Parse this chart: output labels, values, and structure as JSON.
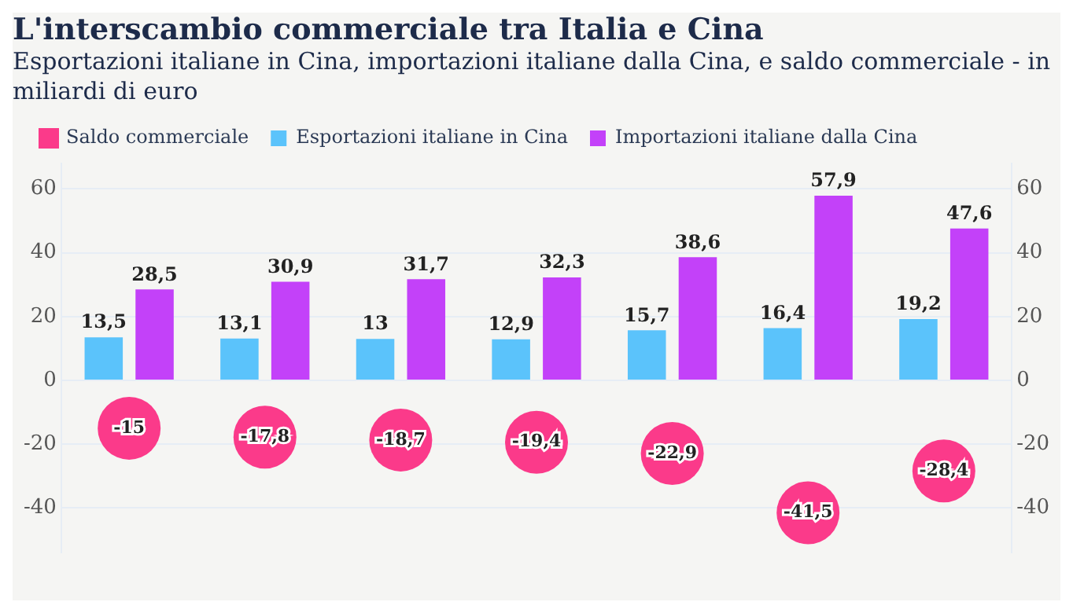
{
  "chart_data": {
    "type": "bar",
    "title": "L'interscambio commerciale tra Italia e Cina",
    "subtitle": "Esportazioni italiane in Cina, importazioni italiane dalla Cina, e saldo commerciale - in miliardi di euro",
    "categories": [
      null,
      null,
      null,
      null,
      null,
      null,
      null
    ],
    "series": [
      {
        "name": "Saldo commerciale",
        "type": "scatter",
        "marker": "circle",
        "color": "#fb3a8a",
        "values": [
          -15,
          -17.8,
          -18.7,
          -19.4,
          -22.9,
          -41.5,
          -28.4
        ],
        "value_labels": [
          "-15",
          "-17,8",
          "-18,7",
          "-19,4",
          "-22,9",
          "-41,5",
          "-28,4"
        ]
      },
      {
        "name": "Esportazioni italiane in Cina",
        "color": "#5bc3fb",
        "values": [
          13.5,
          13.1,
          13,
          12.9,
          15.7,
          16.4,
          19.2
        ],
        "value_labels": [
          "13,5",
          "13,1",
          "13",
          "12,9",
          "15,7",
          "16,4",
          "19,2"
        ]
      },
      {
        "name": "Importazioni italiane dalla Cina",
        "color": "#c341f9",
        "values": [
          28.5,
          30.9,
          31.7,
          32.3,
          38.6,
          57.9,
          47.6
        ],
        "value_labels": [
          "28,5",
          "30,9",
          "31,7",
          "32,3",
          "38,6",
          "57,9",
          "47,6"
        ]
      }
    ],
    "ylim": [
      -54,
      68
    ],
    "yticks": [
      -40,
      -20,
      0,
      20,
      40,
      60
    ],
    "y2lim": [
      -54,
      68
    ],
    "y2ticks": [
      -40,
      -20,
      0,
      20,
      40,
      60
    ],
    "grid": "y",
    "legend": "top left"
  }
}
